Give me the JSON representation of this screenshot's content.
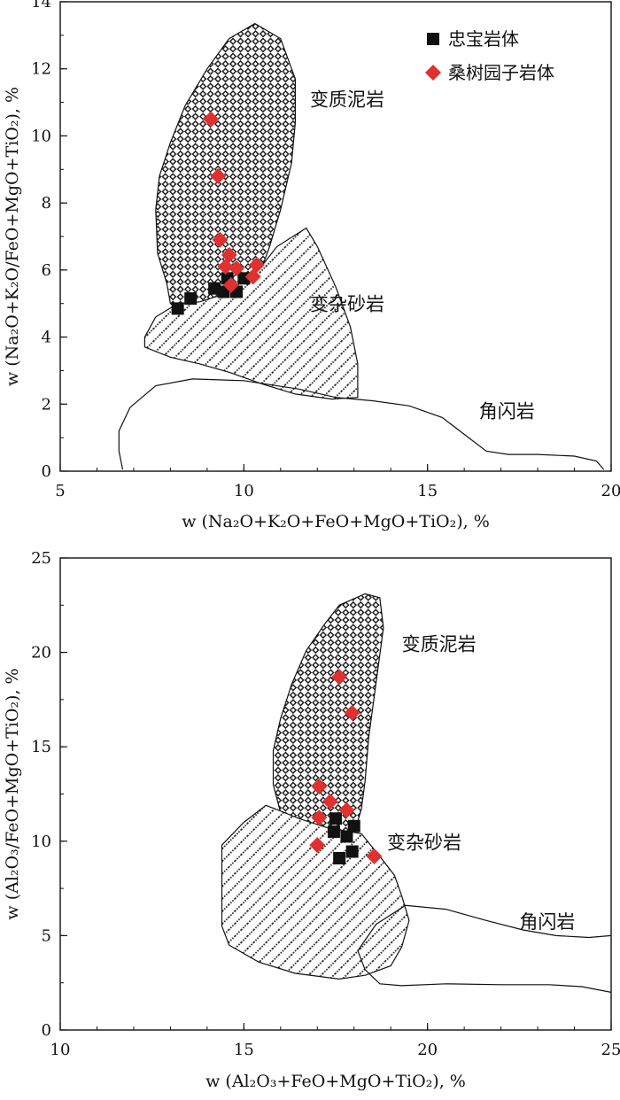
{
  "chart_data": [
    {
      "type": "scatter",
      "xlabel": "w (Na₂O+K₂O+FeO+MgO+TiO₂), %",
      "ylabel": "w (Na₂O+K₂O/FeO+MgO+TiO₂), %",
      "xlim": [
        5,
        20
      ],
      "ylim": [
        0,
        14
      ],
      "xticks": [
        "5",
        "10",
        "15",
        "20"
      ],
      "yticks": [
        "0",
        "2",
        "4",
        "6",
        "8",
        "10",
        "12",
        "14"
      ],
      "legend_position": "top-right",
      "legend": [
        {
          "label": "忠宝岩体",
          "marker": "square",
          "color": "#111111"
        },
        {
          "label": "桑树园子岩体",
          "marker": "diamond",
          "color": "#e03030"
        }
      ],
      "regions": [
        {
          "label": "变质泥岩",
          "pattern": "checker",
          "label_at": [
            11.8,
            10.9
          ],
          "outline": [
            [
              9.7,
              4.0
            ],
            [
              9.3,
              3.95
            ],
            [
              8.9,
              4.15
            ],
            [
              8.5,
              4.6
            ],
            [
              8.0,
              5.0
            ],
            [
              7.9,
              5.6
            ],
            [
              7.65,
              6.5
            ],
            [
              7.6,
              7.8
            ],
            [
              7.7,
              8.8
            ],
            [
              8.0,
              9.8
            ],
            [
              8.4,
              10.9
            ],
            [
              9.0,
              12.0
            ],
            [
              9.6,
              12.9
            ],
            [
              10.3,
              13.35
            ],
            [
              11.0,
              12.9
            ],
            [
              11.4,
              11.7
            ],
            [
              11.4,
              10.4
            ],
            [
              11.3,
              9.2
            ],
            [
              11.0,
              7.8
            ],
            [
              10.7,
              6.7
            ],
            [
              10.4,
              5.8
            ],
            [
              10.1,
              4.9
            ],
            [
              9.7,
              4.0
            ]
          ]
        },
        {
          "label": "变杂砂岩",
          "pattern": "hatch",
          "label_at": [
            11.8,
            4.8
          ],
          "outline": [
            [
              7.3,
              4.0
            ],
            [
              7.6,
              4.6
            ],
            [
              8.2,
              5.0
            ],
            [
              8.8,
              5.05
            ],
            [
              9.5,
              5.3
            ],
            [
              10.4,
              6.0
            ],
            [
              10.9,
              6.7
            ],
            [
              11.7,
              7.25
            ],
            [
              12.0,
              6.7
            ],
            [
              12.5,
              5.5
            ],
            [
              12.9,
              4.3
            ],
            [
              13.1,
              3.2
            ],
            [
              13.1,
              2.2
            ],
            [
              12.4,
              2.15
            ],
            [
              11.4,
              2.3
            ],
            [
              10.5,
              2.6
            ],
            [
              9.6,
              2.95
            ],
            [
              8.8,
              3.2
            ],
            [
              8.0,
              3.4
            ],
            [
              7.3,
              3.7
            ],
            [
              7.3,
              4.0
            ]
          ]
        },
        {
          "label": "角闪岩",
          "pattern": "none",
          "label_at": [
            16.4,
            1.6
          ],
          "outline": [
            [
              6.7,
              0.05
            ],
            [
              6.6,
              0.6
            ],
            [
              6.6,
              1.2
            ],
            [
              6.9,
              1.9
            ],
            [
              7.6,
              2.55
            ],
            [
              8.6,
              2.75
            ],
            [
              10.0,
              2.7
            ],
            [
              11.5,
              2.45
            ],
            [
              12.5,
              2.2
            ],
            [
              13.5,
              2.1
            ],
            [
              14.5,
              1.95
            ],
            [
              15.4,
              1.6
            ],
            [
              16.0,
              1.1
            ],
            [
              16.6,
              0.6
            ],
            [
              17.2,
              0.5
            ],
            [
              18.0,
              0.5
            ],
            [
              19.0,
              0.45
            ],
            [
              19.6,
              0.3
            ],
            [
              19.8,
              0.05
            ]
          ]
        }
      ],
      "series": [
        {
          "name": "忠宝岩体",
          "marker": "square",
          "color": "#111111",
          "points": [
            [
              8.2,
              4.85
            ],
            [
              8.55,
              5.15
            ],
            [
              9.2,
              5.45
            ],
            [
              9.45,
              5.35
            ],
            [
              9.8,
              5.35
            ],
            [
              9.55,
              5.75
            ],
            [
              10.0,
              5.75
            ]
          ]
        },
        {
          "name": "桑树园子岩体",
          "marker": "diamond",
          "color": "#e03030",
          "points": [
            [
              9.1,
              10.5
            ],
            [
              9.3,
              8.8
            ],
            [
              9.35,
              6.9
            ],
            [
              9.6,
              6.45
            ],
            [
              9.5,
              6.1
            ],
            [
              9.8,
              6.05
            ],
            [
              10.35,
              6.15
            ],
            [
              10.25,
              5.8
            ],
            [
              9.65,
              5.55
            ]
          ]
        }
      ]
    },
    {
      "type": "scatter",
      "xlabel": "w (Al₂O₃+FeO+MgO+TiO₂), %",
      "ylabel": "w (Al₂O₃/FeO+MgO+TiO₂), %",
      "xlim": [
        10,
        25
      ],
      "ylim": [
        0,
        25
      ],
      "xticks": [
        "10",
        "15",
        "20",
        "25"
      ],
      "yticks": [
        "0",
        "5",
        "10",
        "15",
        "20",
        "25"
      ],
      "regions": [
        {
          "label": "变质泥岩",
          "pattern": "checker",
          "label_at": [
            19.3,
            20.1
          ],
          "outline": [
            [
              16.8,
              9.6
            ],
            [
              16.4,
              10.3
            ],
            [
              16.0,
              11.5
            ],
            [
              15.8,
              13.0
            ],
            [
              15.8,
              14.8
            ],
            [
              16.0,
              16.5
            ],
            [
              16.3,
              18.3
            ],
            [
              16.7,
              20.1
            ],
            [
              17.2,
              21.5
            ],
            [
              17.6,
              22.5
            ],
            [
              18.3,
              23.1
            ],
            [
              18.7,
              22.9
            ],
            [
              18.8,
              21.3
            ],
            [
              18.6,
              18.4
            ],
            [
              18.4,
              15.5
            ],
            [
              18.3,
              13.2
            ],
            [
              18.2,
              11.7
            ],
            [
              18.0,
              10.4
            ],
            [
              17.5,
              9.7
            ],
            [
              17.0,
              9.5
            ],
            [
              16.8,
              9.6
            ]
          ]
        },
        {
          "label": "变杂砂岩",
          "pattern": "hatch",
          "label_at": [
            18.9,
            9.6
          ],
          "outline": [
            [
              14.4,
              9.8
            ],
            [
              15.0,
              11.0
            ],
            [
              15.6,
              11.9
            ],
            [
              16.0,
              11.6
            ],
            [
              16.5,
              11.2
            ],
            [
              17.3,
              10.7
            ],
            [
              18.2,
              10.4
            ],
            [
              18.7,
              9.2
            ],
            [
              19.1,
              8.2
            ],
            [
              19.3,
              7.1
            ],
            [
              19.5,
              5.8
            ],
            [
              19.3,
              4.4
            ],
            [
              19.0,
              3.4
            ],
            [
              18.3,
              2.9
            ],
            [
              17.6,
              2.7
            ],
            [
              16.4,
              3.0
            ],
            [
              15.4,
              3.6
            ],
            [
              14.6,
              4.5
            ],
            [
              14.4,
              5.5
            ],
            [
              14.4,
              7.8
            ],
            [
              14.4,
              9.8
            ]
          ]
        },
        {
          "label": "角闪岩",
          "pattern": "none",
          "label_at": [
            22.5,
            5.4
          ],
          "outline": [
            [
              25.0,
              2.0
            ],
            [
              24.2,
              2.3
            ],
            [
              23.3,
              2.4
            ],
            [
              22.0,
              2.4
            ],
            [
              20.5,
              2.45
            ],
            [
              19.3,
              2.35
            ],
            [
              18.7,
              2.45
            ],
            [
              18.3,
              3.2
            ],
            [
              18.1,
              4.2
            ],
            [
              18.6,
              5.6
            ],
            [
              19.4,
              6.6
            ],
            [
              20.5,
              6.4
            ],
            [
              21.6,
              5.8
            ],
            [
              22.6,
              5.3
            ],
            [
              23.5,
              5.0
            ],
            [
              24.4,
              4.9
            ],
            [
              25.0,
              5.0
            ]
          ]
        }
      ],
      "series": [
        {
          "name": "忠宝岩体",
          "marker": "square",
          "color": "#111111",
          "points": [
            [
              17.5,
              11.2
            ],
            [
              17.45,
              10.5
            ],
            [
              17.8,
              10.25
            ],
            [
              18.0,
              10.8
            ],
            [
              17.95,
              9.45
            ],
            [
              17.6,
              9.1
            ]
          ]
        },
        {
          "name": "桑树园子岩体",
          "marker": "diamond",
          "color": "#e03030",
          "points": [
            [
              17.6,
              18.7
            ],
            [
              17.95,
              16.8
            ],
            [
              17.05,
              12.9
            ],
            [
              17.35,
              12.1
            ],
            [
              17.8,
              11.65
            ],
            [
              17.05,
              11.25
            ],
            [
              17.0,
              9.8
            ],
            [
              18.55,
              9.2
            ]
          ]
        }
      ]
    }
  ]
}
